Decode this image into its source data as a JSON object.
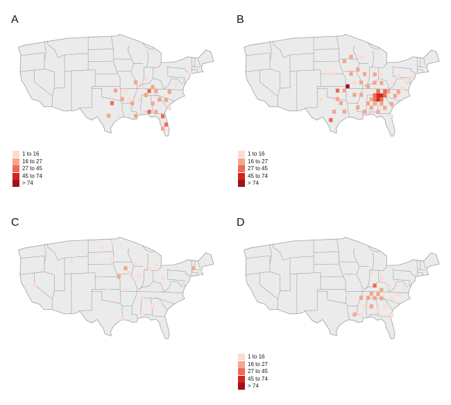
{
  "legend": {
    "items": [
      {
        "label": "1 to 16",
        "color": "#fcdcd2"
      },
      {
        "label": "16 to 27",
        "color": "#f4a68c"
      },
      {
        "label": "27 to 45",
        "color": "#ef6a4f"
      },
      {
        "label": "45 to 74",
        "color": "#d22222"
      },
      {
        "label": "> 74",
        "color": "#a50f15"
      }
    ]
  },
  "colors": {
    "land": "#ebebeb",
    "border": "#9e9e9e"
  },
  "panels": [
    {
      "label": "A",
      "show_legend": true,
      "cells": [
        {
          "lon": -85,
          "lat": 37,
          "bin": 1
        },
        {
          "lon": -86,
          "lat": 36,
          "bin": 2
        },
        {
          "lon": -87,
          "lat": 35,
          "bin": 1
        },
        {
          "lon": -84,
          "lat": 36,
          "bin": 1
        },
        {
          "lon": -89,
          "lat": 34,
          "bin": 0
        },
        {
          "lon": -91,
          "lat": 33,
          "bin": 1
        },
        {
          "lon": -92,
          "lat": 34,
          "bin": 0
        },
        {
          "lon": -94,
          "lat": 34,
          "bin": 1
        },
        {
          "lon": -97,
          "lat": 33,
          "bin": 2
        },
        {
          "lon": -98,
          "lat": 30,
          "bin": 1
        },
        {
          "lon": -95,
          "lat": 30,
          "bin": 0
        },
        {
          "lon": -90,
          "lat": 30,
          "bin": 1
        },
        {
          "lon": -88,
          "lat": 31,
          "bin": 0
        },
        {
          "lon": -86,
          "lat": 31,
          "bin": 2
        },
        {
          "lon": -84,
          "lat": 31,
          "bin": 1
        },
        {
          "lon": -82,
          "lat": 30,
          "bin": 2
        },
        {
          "lon": -81,
          "lat": 28,
          "bin": 2
        },
        {
          "lon": -82,
          "lat": 27,
          "bin": 1
        },
        {
          "lon": -83,
          "lat": 34,
          "bin": 1
        },
        {
          "lon": -81,
          "lat": 34,
          "bin": 1
        },
        {
          "lon": -80,
          "lat": 36,
          "bin": 1
        },
        {
          "lon": -78,
          "lat": 38,
          "bin": 0
        },
        {
          "lon": -74,
          "lat": 41,
          "bin": 0
        },
        {
          "lon": -90,
          "lat": 38,
          "bin": 1
        },
        {
          "lon": -88,
          "lat": 37,
          "bin": 0
        },
        {
          "lon": -93,
          "lat": 36,
          "bin": 0
        },
        {
          "lon": -96,
          "lat": 36,
          "bin": 1
        },
        {
          "lon": -85,
          "lat": 33,
          "bin": 1
        },
        {
          "lon": -80,
          "lat": 32,
          "bin": 0
        },
        {
          "lon": -87,
          "lat": 39,
          "bin": 0
        }
      ]
    },
    {
      "label": "B",
      "show_legend": true,
      "cells": [
        {
          "lon": -85,
          "lat": 35,
          "bin": 3
        },
        {
          "lon": -84,
          "lat": 35,
          "bin": 3
        },
        {
          "lon": -86,
          "lat": 35,
          "bin": 2
        },
        {
          "lon": -85,
          "lat": 34,
          "bin": 3
        },
        {
          "lon": -84,
          "lat": 34,
          "bin": 2
        },
        {
          "lon": -83,
          "lat": 35,
          "bin": 2
        },
        {
          "lon": -86,
          "lat": 34,
          "bin": 2
        },
        {
          "lon": -85,
          "lat": 36,
          "bin": 2
        },
        {
          "lon": -87,
          "lat": 34,
          "bin": 1
        },
        {
          "lon": -82,
          "lat": 36,
          "bin": 1
        },
        {
          "lon": -83,
          "lat": 36,
          "bin": 2
        },
        {
          "lon": -84,
          "lat": 33,
          "bin": 1
        },
        {
          "lon": -86,
          "lat": 33,
          "bin": 1
        },
        {
          "lon": -88,
          "lat": 33,
          "bin": 1
        },
        {
          "lon": -90,
          "lat": 35,
          "bin": 1
        },
        {
          "lon": -92,
          "lat": 35,
          "bin": 1
        },
        {
          "lon": -94,
          "lat": 37,
          "bin": 4
        },
        {
          "lon": -95,
          "lat": 36,
          "bin": 1
        },
        {
          "lon": -97,
          "lat": 36,
          "bin": 2
        },
        {
          "lon": -97,
          "lat": 34,
          "bin": 1
        },
        {
          "lon": -96,
          "lat": 33,
          "bin": 1
        },
        {
          "lon": -98,
          "lat": 31,
          "bin": 1
        },
        {
          "lon": -95,
          "lat": 31,
          "bin": 1
        },
        {
          "lon": -99,
          "lat": 29,
          "bin": 2
        },
        {
          "lon": -91,
          "lat": 32,
          "bin": 1
        },
        {
          "lon": -89,
          "lat": 31,
          "bin": 1
        },
        {
          "lon": -87,
          "lat": 32,
          "bin": 1
        },
        {
          "lon": -83,
          "lat": 32,
          "bin": 1
        },
        {
          "lon": -81,
          "lat": 33,
          "bin": 1
        },
        {
          "lon": -80,
          "lat": 35,
          "bin": 1
        },
        {
          "lon": -79,
          "lat": 36,
          "bin": 1
        },
        {
          "lon": -78,
          "lat": 37,
          "bin": 0
        },
        {
          "lon": -81,
          "lat": 38,
          "bin": 0
        },
        {
          "lon": -84,
          "lat": 38,
          "bin": 1
        },
        {
          "lon": -86,
          "lat": 38,
          "bin": 1
        },
        {
          "lon": -88,
          "lat": 37,
          "bin": 1
        },
        {
          "lon": -90,
          "lat": 38,
          "bin": 1
        },
        {
          "lon": -92,
          "lat": 38,
          "bin": 0
        },
        {
          "lon": -93,
          "lat": 40,
          "bin": 1
        },
        {
          "lon": -91,
          "lat": 41,
          "bin": 1
        },
        {
          "lon": -89,
          "lat": 40,
          "bin": 1
        },
        {
          "lon": -86,
          "lat": 40,
          "bin": 1
        },
        {
          "lon": -84,
          "lat": 40,
          "bin": 0
        },
        {
          "lon": -95,
          "lat": 43,
          "bin": 1
        },
        {
          "lon": -93,
          "lat": 44,
          "bin": 1
        },
        {
          "lon": -90,
          "lat": 44,
          "bin": 0
        },
        {
          "lon": -98,
          "lat": 40,
          "bin": 0
        },
        {
          "lon": -81,
          "lat": 30,
          "bin": 0
        },
        {
          "lon": -85,
          "lat": 31,
          "bin": 1
        },
        {
          "lon": -79,
          "lat": 40,
          "bin": 0
        },
        {
          "lon": -75,
          "lat": 40,
          "bin": 0
        },
        {
          "lon": -77,
          "lat": 39,
          "bin": 0
        },
        {
          "lon": -102,
          "lat": 34,
          "bin": 0
        },
        {
          "lon": -100,
          "lat": 40,
          "bin": 0
        }
      ]
    },
    {
      "label": "C",
      "show_legend": false,
      "cells": [
        {
          "lon": -93,
          "lat": 42,
          "bin": 1
        },
        {
          "lon": -95,
          "lat": 40,
          "bin": 1
        },
        {
          "lon": -92,
          "lat": 41,
          "bin": 0
        },
        {
          "lon": -90,
          "lat": 43,
          "bin": 0
        },
        {
          "lon": -97,
          "lat": 44,
          "bin": 0
        },
        {
          "lon": -89,
          "lat": 40,
          "bin": 0
        },
        {
          "lon": -86,
          "lat": 42,
          "bin": 0
        },
        {
          "lon": -84,
          "lat": 43,
          "bin": 0
        },
        {
          "lon": -73,
          "lat": 43,
          "bin": 1
        },
        {
          "lon": -71,
          "lat": 42,
          "bin": 0
        },
        {
          "lon": -76,
          "lat": 39,
          "bin": 0
        },
        {
          "lon": -98,
          "lat": 37,
          "bin": 0
        },
        {
          "lon": -93,
          "lat": 37,
          "bin": 0
        },
        {
          "lon": -88,
          "lat": 35,
          "bin": 0
        },
        {
          "lon": -85,
          "lat": 33,
          "bin": 0
        },
        {
          "lon": -88,
          "lat": 31,
          "bin": 0
        },
        {
          "lon": -97,
          "lat": 48,
          "bin": 0
        },
        {
          "lon": -100,
          "lat": 47,
          "bin": 0
        },
        {
          "lon": -109,
          "lat": 44,
          "bin": 0
        },
        {
          "lon": -120,
          "lat": 39,
          "bin": 0
        },
        {
          "lon": -82,
          "lat": 40,
          "bin": 0
        },
        {
          "lon": -94,
          "lat": 30,
          "bin": 0
        }
      ]
    },
    {
      "label": "D",
      "show_legend": true,
      "cells": [
        {
          "lon": -86,
          "lat": 38,
          "bin": 2
        },
        {
          "lon": -85,
          "lat": 36,
          "bin": 1
        },
        {
          "lon": -87,
          "lat": 36,
          "bin": 1
        },
        {
          "lon": -84,
          "lat": 37,
          "bin": 1
        },
        {
          "lon": -86,
          "lat": 35,
          "bin": 1
        },
        {
          "lon": -88,
          "lat": 35,
          "bin": 1
        },
        {
          "lon": -90,
          "lat": 35,
          "bin": 1
        },
        {
          "lon": -89,
          "lat": 33,
          "bin": 0
        },
        {
          "lon": -87,
          "lat": 33,
          "bin": 1
        },
        {
          "lon": -85,
          "lat": 32,
          "bin": 0
        },
        {
          "lon": -83,
          "lat": 33,
          "bin": 0
        },
        {
          "lon": -81,
          "lat": 35,
          "bin": 0
        },
        {
          "lon": -79,
          "lat": 36,
          "bin": 0
        },
        {
          "lon": -82,
          "lat": 38,
          "bin": 0
        },
        {
          "lon": -84,
          "lat": 40,
          "bin": 0
        },
        {
          "lon": -87,
          "lat": 41,
          "bin": 0
        },
        {
          "lon": -90,
          "lat": 31,
          "bin": 0
        },
        {
          "lon": -92,
          "lat": 31,
          "bin": 1
        },
        {
          "lon": -81,
          "lat": 31,
          "bin": 0
        },
        {
          "lon": -94,
          "lat": 36,
          "bin": 0
        },
        {
          "lon": -77,
          "lat": 38,
          "bin": 0
        },
        {
          "lon": -84,
          "lat": 35,
          "bin": 1
        }
      ]
    }
  ]
}
